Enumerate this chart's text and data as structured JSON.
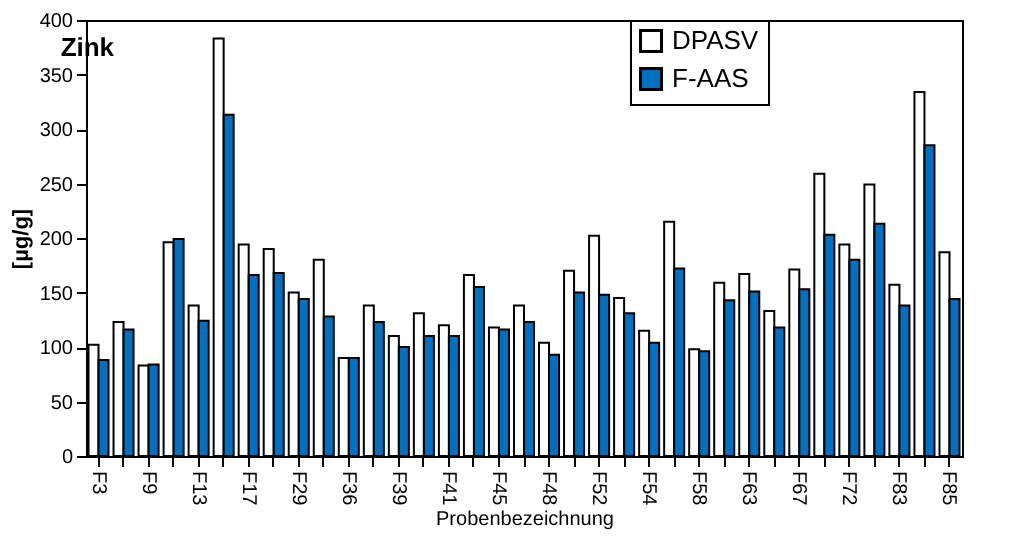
{
  "chart_data": {
    "type": "bar",
    "title": "Zink",
    "xlabel": "Probenbezeichnung",
    "ylabel": "[µg/g]",
    "categories": [
      "F3",
      null,
      "F9",
      null,
      "F13",
      null,
      "F17",
      null,
      "F29",
      null,
      "F36",
      null,
      "F39",
      null,
      "F41",
      null,
      "F45",
      null,
      "F48",
      null,
      "F52",
      null,
      "F54",
      null,
      "F58",
      null,
      "F63",
      null,
      "F67",
      null,
      "F72",
      null,
      "F83",
      null,
      "F85"
    ],
    "series": [
      {
        "name": "DPASV",
        "color": "#ffffff",
        "values": [
          102,
          123,
          83,
          196,
          138,
          383,
          194,
          190,
          150,
          180,
          90,
          138,
          110,
          131,
          120,
          166,
          118,
          138,
          104,
          170,
          202,
          145,
          115,
          215,
          98,
          159,
          167,
          133,
          171,
          259,
          194,
          249,
          157,
          334,
          187
        ]
      },
      {
        "name": "F-AAS",
        "color": "#0070c0",
        "values": [
          88,
          116,
          84,
          199,
          124,
          313,
          166,
          168,
          144,
          128,
          90,
          123,
          100,
          110,
          110,
          155,
          116,
          123,
          93,
          150,
          148,
          131,
          104,
          172,
          96,
          143,
          151,
          118,
          153,
          203,
          180,
          213,
          138,
          285,
          144
        ]
      }
    ],
    "ylim": [
      0,
      400
    ],
    "yticks": [
      0,
      50,
      100,
      150,
      200,
      250,
      300,
      350,
      400
    ],
    "grid": false,
    "legend": "top right"
  }
}
